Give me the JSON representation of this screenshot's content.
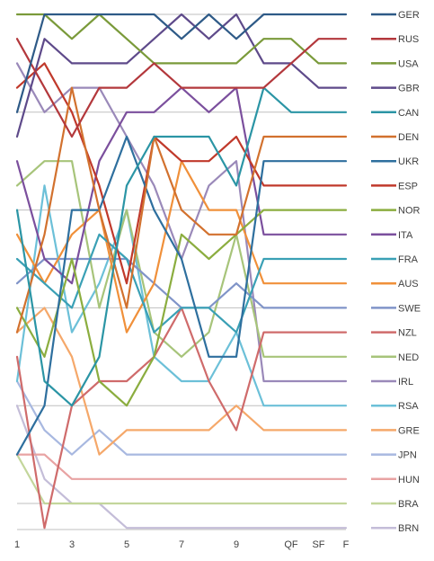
{
  "chart_data": {
    "type": "line",
    "title": "",
    "xlabel": "",
    "ylabel": "",
    "x_categories": [
      "1",
      "2",
      "3",
      "4",
      "5",
      "6",
      "7",
      "8",
      "9",
      "10",
      "QF",
      "SF",
      "F"
    ],
    "x_tick_labels": [
      "1",
      "",
      "3",
      "",
      "5",
      "",
      "7",
      "",
      "9",
      "",
      "QF",
      "SF",
      "F"
    ],
    "ylim": [
      22,
      0
    ],
    "y_axis_labels_shown": false,
    "legend_position": "right",
    "grid": {
      "horizontal_major": true,
      "vertical": false
    },
    "series": [
      {
        "name": "GER",
        "color": "#2e5a87",
        "values": [
          5,
          1,
          1,
          1,
          1,
          1,
          2,
          1,
          2,
          1,
          1,
          1,
          1
        ]
      },
      {
        "name": "RUS",
        "color": "#b3383c",
        "values": [
          2,
          4,
          6,
          4,
          4,
          3,
          4,
          4,
          4,
          4,
          3,
          2,
          2
        ]
      },
      {
        "name": "USA",
        "color": "#7a9a3a",
        "values": [
          1,
          1,
          2,
          1,
          2,
          3,
          3,
          3,
          3,
          2,
          2,
          3,
          3
        ]
      },
      {
        "name": "GBR",
        "color": "#5e4a8a",
        "values": [
          6,
          2,
          3,
          3,
          3,
          2,
          1,
          2,
          1,
          3,
          3,
          4,
          4
        ]
      },
      {
        "name": "CAN",
        "color": "#2b95a5",
        "values": [
          9,
          16,
          17,
          15,
          8,
          6,
          6,
          6,
          8,
          4,
          5,
          5,
          5
        ]
      },
      {
        "name": "DEN",
        "color": "#d2712e",
        "values": [
          14,
          10,
          4,
          9,
          13,
          6,
          9,
          10,
          10,
          6,
          6,
          6,
          6
        ]
      },
      {
        "name": "UKR",
        "color": "#2e6f9e",
        "values": [
          19,
          17,
          9,
          9,
          6,
          9,
          11,
          15,
          15,
          7,
          7,
          7,
          7
        ]
      },
      {
        "name": "ESP",
        "color": "#c0392b",
        "values": [
          4,
          3,
          5,
          8,
          12,
          6,
          7,
          7,
          6,
          8,
          8,
          8,
          8
        ]
      },
      {
        "name": "NOR",
        "color": "#8bad3f",
        "values": [
          13,
          15,
          11,
          16,
          17,
          15,
          10,
          11,
          10,
          9,
          9,
          9,
          9
        ]
      },
      {
        "name": "ITA",
        "color": "#7b4f9d",
        "values": [
          7,
          11,
          12,
          7,
          5,
          5,
          4,
          5,
          4,
          10,
          10,
          10,
          10
        ]
      },
      {
        "name": "FRA",
        "color": "#3aa0b5",
        "values": [
          11,
          12,
          13,
          10,
          11,
          14,
          13,
          13,
          14,
          11,
          11,
          11,
          11
        ]
      },
      {
        "name": "AUS",
        "color": "#f0903a",
        "values": [
          10,
          12,
          10,
          9,
          14,
          12,
          7,
          9,
          9,
          12,
          12,
          12,
          12
        ]
      },
      {
        "name": "SWE",
        "color": "#8094c8",
        "values": [
          12,
          11,
          11,
          11,
          11,
          12,
          13,
          13,
          12,
          13,
          13,
          13,
          13
        ]
      },
      {
        "name": "NZL",
        "color": "#cf6b6b",
        "values": [
          15,
          22,
          17,
          16,
          16,
          15,
          13,
          16,
          18,
          14,
          14,
          14,
          14
        ]
      },
      {
        "name": "NED",
        "color": "#a7c47a",
        "values": [
          8,
          7,
          7,
          13,
          9,
          14,
          15,
          14,
          10,
          15,
          15,
          15,
          15
        ]
      },
      {
        "name": "IRL",
        "color": "#9a89b9",
        "values": [
          3,
          5,
          4,
          4,
          6,
          8,
          11,
          8,
          7,
          16,
          16,
          16,
          16
        ]
      },
      {
        "name": "RSA",
        "color": "#6cc0d8",
        "values": [
          16,
          8,
          14,
          12,
          9,
          15,
          16,
          16,
          14,
          17,
          17,
          17,
          17
        ]
      },
      {
        "name": "GRE",
        "color": "#f5a86a",
        "values": [
          14,
          13,
          15,
          19,
          18,
          18,
          18,
          18,
          17,
          18,
          18,
          18,
          18
        ]
      },
      {
        "name": "JPN",
        "color": "#a8b8e0",
        "values": [
          16,
          18,
          19,
          18,
          19,
          19,
          19,
          19,
          19,
          19,
          19,
          19,
          19
        ]
      },
      {
        "name": "HUN",
        "color": "#e8a3a3",
        "values": [
          19,
          19,
          20,
          20,
          20,
          20,
          20,
          20,
          20,
          20,
          20,
          20,
          20
        ]
      },
      {
        "name": "BRA",
        "color": "#c3d69b",
        "values": [
          19,
          21,
          21,
          21,
          21,
          21,
          21,
          21,
          21,
          21,
          21,
          21,
          21
        ]
      },
      {
        "name": "BRN",
        "color": "#c4bdd8",
        "values": [
          17,
          20,
          21,
          21,
          22,
          22,
          22,
          22,
          22,
          22,
          22,
          22,
          22
        ]
      }
    ]
  }
}
